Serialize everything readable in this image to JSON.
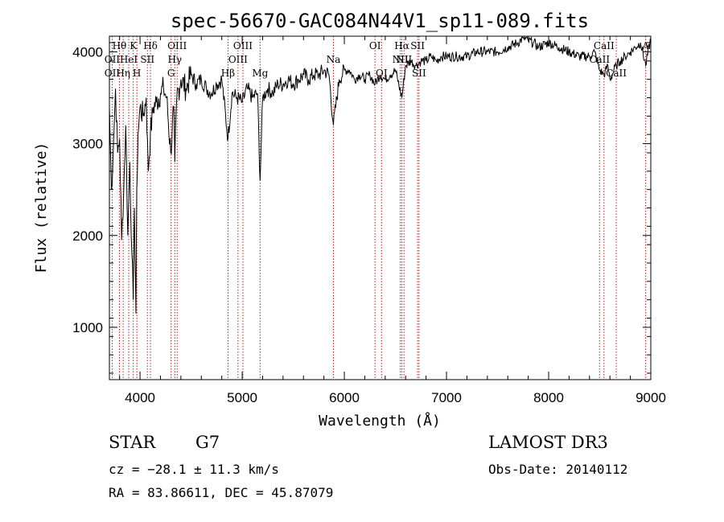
{
  "chart_data": {
    "type": "line",
    "title": "spec-56670-GAC084N44V1_sp11-089.fits",
    "xlabel": "Wavelength (Å)",
    "ylabel": "Flux (relative)",
    "xlim": [
      3700,
      9000
    ],
    "ylim": [
      430,
      4170
    ],
    "xticks": [
      4000,
      5000,
      6000,
      7000,
      8000,
      9000
    ],
    "yticks": [
      1000,
      2000,
      3000,
      4000
    ],
    "series": [
      {
        "name": "flux",
        "x": [
          3700,
          3720,
          3740,
          3760,
          3780,
          3800,
          3820,
          3840,
          3860,
          3880,
          3900,
          3920,
          3933,
          3945,
          3960,
          3968,
          3980,
          4000,
          4030,
          4060,
          4080,
          4101,
          4130,
          4160,
          4200,
          4230,
          4260,
          4300,
          4330,
          4340,
          4360,
          4400,
          4450,
          4500,
          4550,
          4600,
          4650,
          4700,
          4750,
          4800,
          4861,
          4900,
          4950,
          5000,
          5050,
          5100,
          5150,
          5175,
          5200,
          5250,
          5300,
          5350,
          5400,
          5450,
          5500,
          5550,
          5600,
          5650,
          5700,
          5750,
          5800,
          5850,
          5893,
          5950,
          6000,
          6050,
          6100,
          6150,
          6200,
          6250,
          6300,
          6350,
          6400,
          6450,
          6500,
          6563,
          6600,
          6650,
          6700,
          6750,
          6800,
          6850,
          6900,
          6950,
          7000,
          7100,
          7200,
          7300,
          7400,
          7500,
          7600,
          7700,
          7750,
          7800,
          7850,
          7900,
          8000,
          8100,
          8200,
          8300,
          8400,
          8450,
          8498,
          8542,
          8580,
          8600,
          8662,
          8700,
          8750,
          8800,
          8850,
          8900,
          8950,
          9000
        ],
        "y": [
          3400,
          2500,
          3000,
          3600,
          2900,
          3050,
          1950,
          2500,
          3200,
          2000,
          2800,
          1800,
          1300,
          2300,
          1150,
          2500,
          3100,
          3400,
          3300,
          3500,
          2700,
          3100,
          3400,
          3450,
          3550,
          3600,
          3500,
          2900,
          3400,
          2800,
          3500,
          3700,
          3600,
          3750,
          3650,
          3700,
          3600,
          3550,
          3650,
          3700,
          3050,
          3550,
          3500,
          3450,
          3600,
          3500,
          3550,
          2600,
          3500,
          3600,
          3550,
          3650,
          3650,
          3700,
          3650,
          3700,
          3750,
          3700,
          3750,
          3750,
          3800,
          3750,
          3200,
          3700,
          3800,
          3800,
          3700,
          3750,
          3700,
          3750,
          3650,
          3750,
          3700,
          3750,
          3800,
          3500,
          3850,
          3900,
          3850,
          3900,
          3900,
          3950,
          3900,
          3950,
          3950,
          3950,
          3950,
          4000,
          4000,
          4000,
          4050,
          4100,
          4150,
          4120,
          4100,
          4050,
          4100,
          4050,
          4000,
          3950,
          3950,
          4000,
          3800,
          3750,
          3850,
          3700,
          3850,
          3900,
          3950,
          4000,
          4050,
          4100,
          3850,
          4150
        ]
      }
    ],
    "spectral_lines": [
      {
        "name": "Hθ",
        "x": 3798,
        "row": 0
      },
      {
        "name": "OII",
        "x": 3727,
        "row": 1
      },
      {
        "name": "OII",
        "x": 3727,
        "row": 2
      },
      {
        "name": "Hη",
        "x": 3835,
        "row": 2
      },
      {
        "name": "K",
        "x": 3934,
        "row": 0
      },
      {
        "name": "HeI",
        "x": 3889,
        "row": 1
      },
      {
        "name": "H",
        "x": 3969,
        "row": 2
      },
      {
        "name": "Hδ",
        "x": 4102,
        "row": 0
      },
      {
        "name": "SII",
        "x": 4072,
        "row": 1
      },
      {
        "name": "OIII",
        "x": 4363,
        "row": 0
      },
      {
        "name": "Hγ",
        "x": 4340,
        "row": 1
      },
      {
        "name": "G",
        "x": 4304,
        "row": 2
      },
      {
        "name": "Hβ",
        "x": 4861,
        "row": 2
      },
      {
        "name": "OIII",
        "x": 5007,
        "row": 0
      },
      {
        "name": "OIII",
        "x": 4959,
        "row": 1
      },
      {
        "name": "Mg",
        "x": 5175,
        "row": 2
      },
      {
        "name": "Na",
        "x": 5893,
        "row": 1
      },
      {
        "name": "OI",
        "x": 6300,
        "row": 0
      },
      {
        "name": "OI",
        "x": 6364,
        "row": 2
      },
      {
        "name": "Hα",
        "x": 6563,
        "row": 0
      },
      {
        "name": "SII",
        "x": 6717,
        "row": 0
      },
      {
        "name": "NII",
        "x": 6548,
        "row": 1
      },
      {
        "name": "NII",
        "x": 6584,
        "row": 1
      },
      {
        "name": "SII",
        "x": 6731,
        "row": 2
      },
      {
        "name": "CaII",
        "x": 8542,
        "row": 0
      },
      {
        "name": "CaII",
        "x": 8498,
        "row": 1
      },
      {
        "name": "CaII",
        "x": 8662,
        "row": 2
      },
      {
        "name": "A",
        "x": 8950,
        "row": 0
      }
    ]
  },
  "info": {
    "object_class": "STAR",
    "subclass": "G7",
    "survey": "LAMOST DR3",
    "redshift": "cz = −28.1 ± 11.3 km/s",
    "obs_date": "Obs-Date: 20140112",
    "coordinates": "RA =  83.86611, DEC =  45.87079"
  },
  "colors": {
    "line_marker": "#b22222",
    "spectrum": "#000000",
    "axes": "#000000"
  }
}
